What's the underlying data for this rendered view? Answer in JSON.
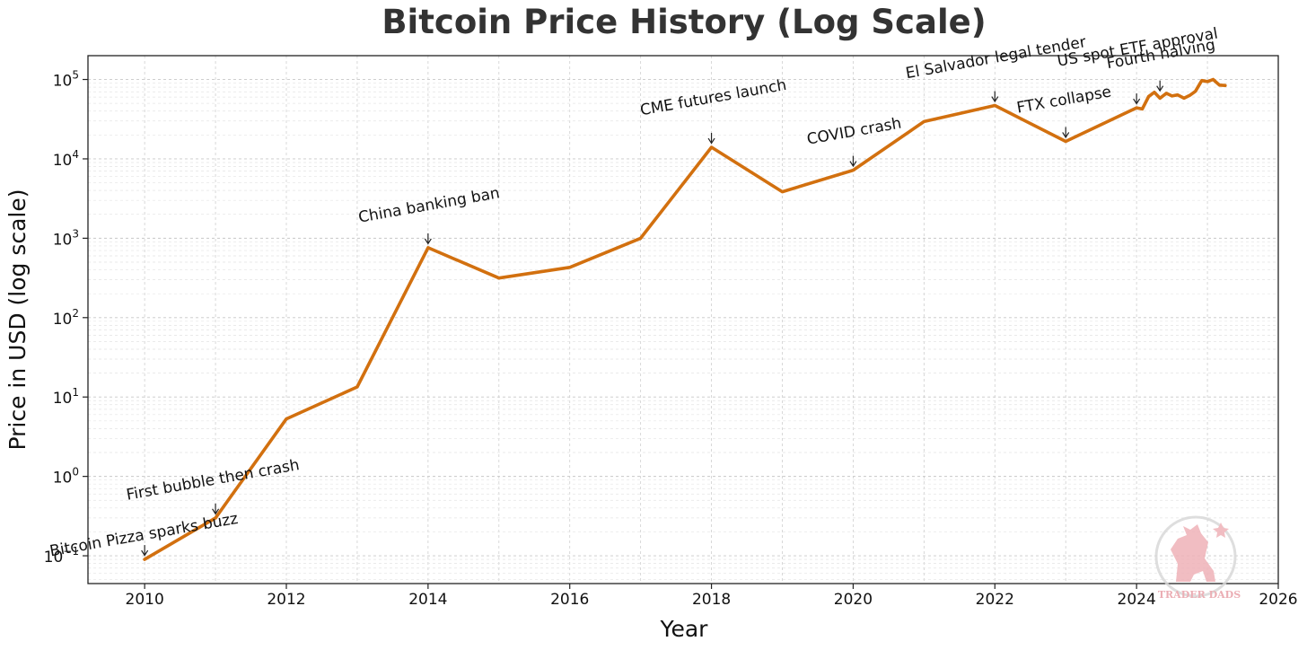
{
  "chart_data": {
    "type": "line",
    "title": "Bitcoin Price History (Log Scale)",
    "xlabel": "Year",
    "ylabel": "Price in USD (log scale)",
    "xlim": [
      2009.2,
      2026.0
    ],
    "ylim_log10": [
      -1.35,
      5.3
    ],
    "x_ticks": [
      2010,
      2012,
      2014,
      2016,
      2018,
      2020,
      2022,
      2024,
      2026
    ],
    "y_ticks": [
      {
        "base": "10",
        "exp": "−1",
        "value": 0.1
      },
      {
        "base": "10",
        "exp": "0",
        "value": 1
      },
      {
        "base": "10",
        "exp": "1",
        "value": 10
      },
      {
        "base": "10",
        "exp": "2",
        "value": 100
      },
      {
        "base": "10",
        "exp": "3",
        "value": 1000
      },
      {
        "base": "10",
        "exp": "4",
        "value": 10000
      },
      {
        "base": "10",
        "exp": "5",
        "value": 100000
      }
    ],
    "grid": true,
    "line_color": "#d2700f",
    "series": [
      {
        "name": "Bitcoin price",
        "points": [
          [
            2010.0,
            0.09
          ],
          [
            2011.0,
            0.3
          ],
          [
            2012.0,
            5.3
          ],
          [
            2013.0,
            13.4
          ],
          [
            2014.0,
            760
          ],
          [
            2015.0,
            315
          ],
          [
            2016.0,
            430
          ],
          [
            2017.0,
            1000
          ],
          [
            2018.0,
            14000
          ],
          [
            2019.0,
            3850
          ],
          [
            2020.0,
            7200
          ],
          [
            2021.0,
            29500
          ],
          [
            2022.0,
            47000
          ],
          [
            2023.0,
            16600
          ],
          [
            2024.0,
            44000
          ],
          [
            2024.08,
            42500
          ],
          [
            2024.17,
            61000
          ],
          [
            2024.25,
            69000
          ],
          [
            2024.33,
            58000
          ],
          [
            2024.42,
            67000
          ],
          [
            2024.5,
            62000
          ],
          [
            2024.58,
            64000
          ],
          [
            2024.67,
            58000
          ],
          [
            2024.75,
            63000
          ],
          [
            2024.83,
            71000
          ],
          [
            2024.92,
            97000
          ],
          [
            2025.0,
            94000
          ],
          [
            2025.08,
            100000
          ],
          [
            2025.17,
            85000
          ],
          [
            2025.25,
            84000
          ]
        ]
      }
    ],
    "annotations": [
      {
        "label": "Bitcoin Pizza sparks buzz",
        "x": 2010.0,
        "y": 0.09
      },
      {
        "label": "First bubble then crash",
        "x": 2011.0,
        "y": 0.3
      },
      {
        "label": "China banking ban",
        "x": 2014.0,
        "y": 760
      },
      {
        "label": "CME futures launch",
        "x": 2018.0,
        "y": 14000
      },
      {
        "label": "COVID crash",
        "x": 2020.0,
        "y": 7200
      },
      {
        "label": "El Salvador legal tender",
        "x": 2022.0,
        "y": 47000
      },
      {
        "label": "FTX collapse",
        "x": 2023.0,
        "y": 16600
      },
      {
        "label": "US spot ETF approval",
        "x": 2024.0,
        "y": 44000
      },
      {
        "label": "Fourth halving",
        "x": 2024.33,
        "y": 64000
      }
    ]
  },
  "watermark": {
    "text": "TRADER DADS",
    "color": "#e8a0a8"
  }
}
